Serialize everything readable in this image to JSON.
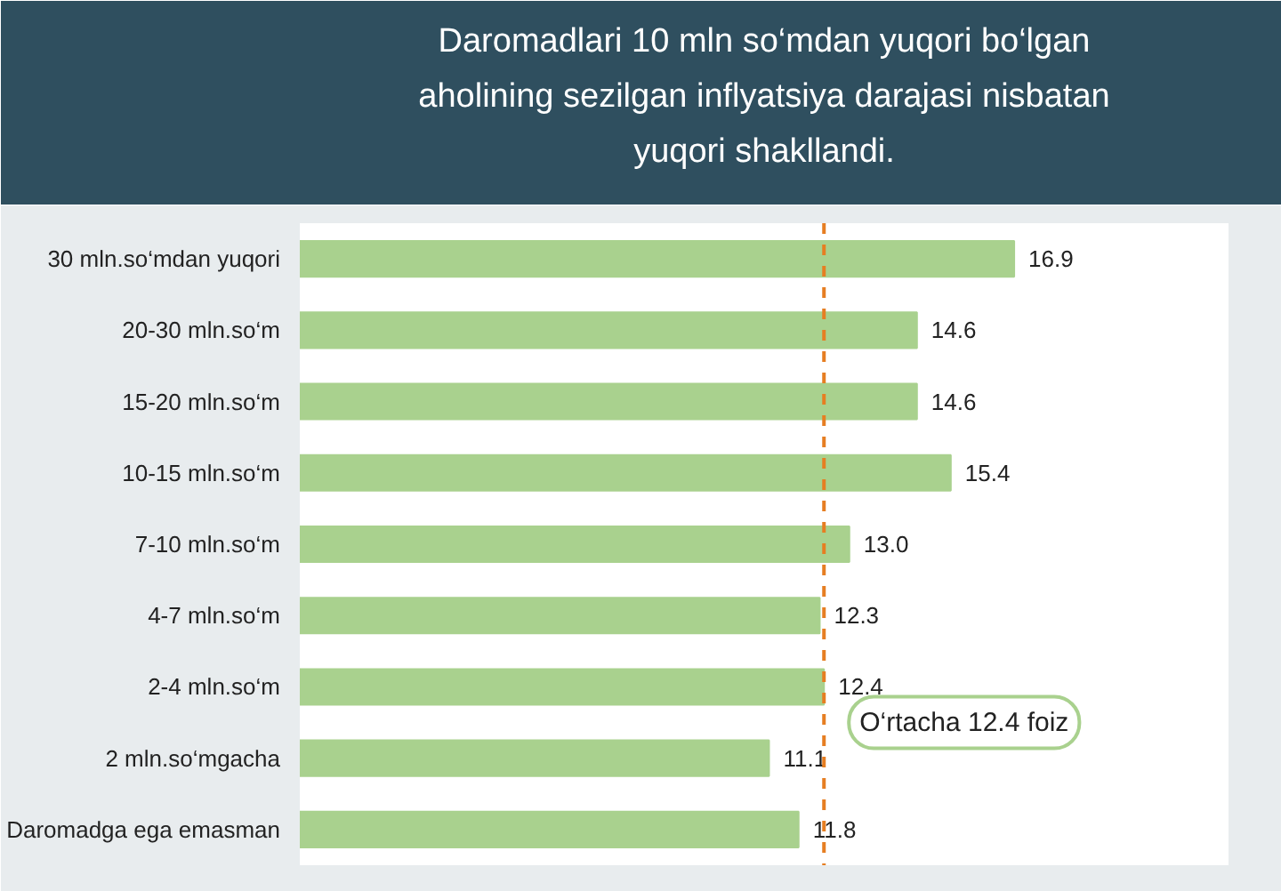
{
  "chart_data": {
    "type": "bar",
    "orientation": "horizontal",
    "title": "Daromadlari 10 mln so‘mdan yuqori bo‘lgan aholining sezilgan inflyatsiya darajasi nisbatan yuqori shakllandi.",
    "categories": [
      "30 mln.so‘mdan yuqori",
      "20-30 mln.so‘m",
      "15-20 mln.so‘m",
      "10-15 mln.so‘m",
      "7-10 mln.so‘m",
      "4-7 mln.so‘m",
      "2-4 mln.so‘m",
      "2 mln.so‘mgacha",
      "Daromadga ega emasman"
    ],
    "values": [
      16.9,
      14.6,
      14.6,
      15.4,
      13.0,
      12.3,
      12.4,
      11.1,
      11.8
    ],
    "value_labels": [
      "16.9",
      "14.6",
      "14.6",
      "15.4",
      "13.0",
      "12.3",
      "12.4",
      "11.1",
      "11.8"
    ],
    "color": "#a9d18e",
    "ref_lines": [
      {
        "axis": "x",
        "value": 12.4,
        "label": "O‘rtacha 12.4 foiz",
        "color": "#e67e22",
        "line_style": "dashed"
      }
    ],
    "grid": false,
    "legend": false
  }
}
